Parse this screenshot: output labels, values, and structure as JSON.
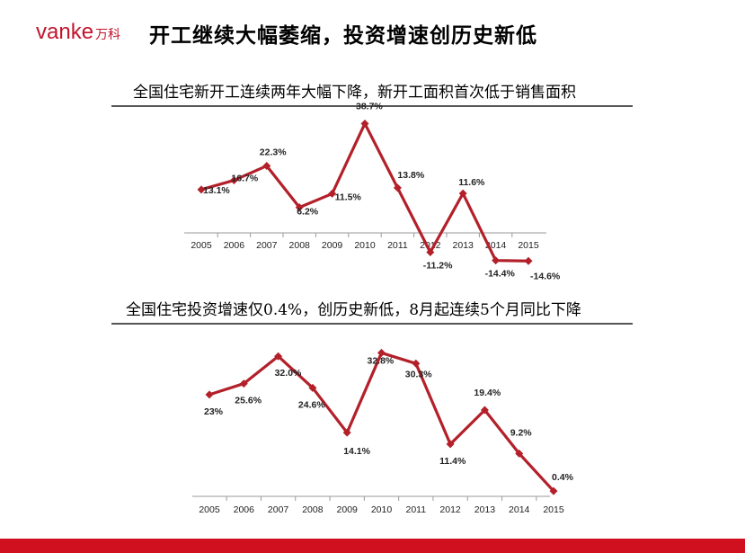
{
  "header": {
    "logo_latin": "vanke",
    "logo_cn": "万科",
    "title": "开工继续大幅萎缩，投资增速创历史新低"
  },
  "colors": {
    "brand_red": "#c2152c",
    "line": "#b3202a",
    "footer": "#d0101e"
  },
  "chart_data": [
    {
      "type": "line",
      "title": "全国住宅新开工连续两年大幅下降，新开工面积首次低于销售面积",
      "categories": [
        "2005",
        "2006",
        "2007",
        "2008",
        "2009",
        "2010",
        "2011",
        "2012",
        "2013",
        "2014",
        "2015"
      ],
      "values": [
        13.1,
        16.7,
        22.3,
        6.2,
        11.5,
        38.7,
        13.8,
        -11.2,
        11.6,
        -14.4,
        -14.6
      ],
      "labels": [
        "13.1%",
        "16.7%",
        "22.3%",
        "6.2%",
        "11.5%",
        "38.7%",
        "13.8%",
        "-11.2%",
        "11.6%",
        "-14.4%",
        "-14.6%"
      ],
      "ylim": [
        -18,
        42
      ],
      "grid": false
    },
    {
      "type": "line",
      "title": "全国住宅投资增速仅0.4%，创历史新低，8月起连续5个月同比下降",
      "categories": [
        "2005",
        "2006",
        "2007",
        "2008",
        "2009",
        "2010",
        "2011",
        "2012",
        "2013",
        "2014",
        "2015"
      ],
      "values": [
        23,
        25.6,
        32.0,
        24.6,
        14.1,
        32.8,
        30.3,
        11.4,
        19.4,
        9.2,
        0.4
      ],
      "labels": [
        "23%",
        "25.6%",
        "32.0%",
        "24.6%",
        "14.1%",
        "32.8%",
        "30.3%",
        "11.4%",
        "19.4%",
        "9.2%",
        "0.4%"
      ],
      "ylim": [
        0,
        35
      ],
      "grid": false
    }
  ]
}
